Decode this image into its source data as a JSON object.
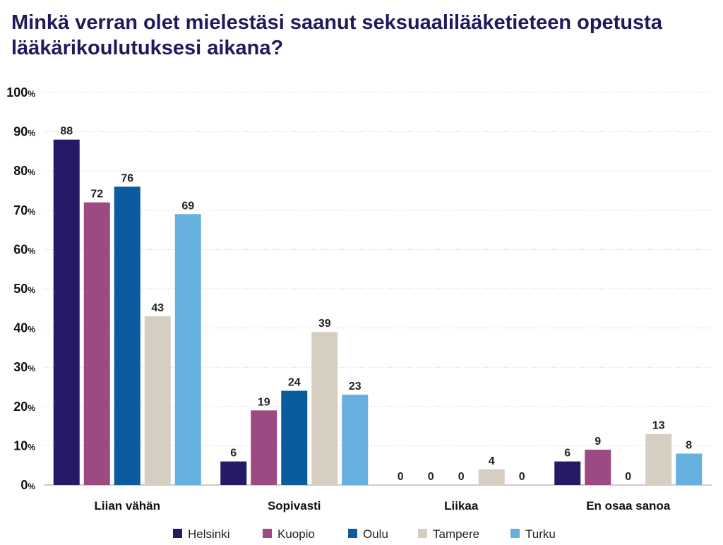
{
  "chart_data": {
    "type": "bar",
    "title": "Minkä verran olet mielestäsi saanut seksuaalilääketieteen opetusta lääkärikoulutuksesi aikana?",
    "categories": [
      "Liian vähän",
      "Sopivasti",
      "Liikaa",
      "En osaa sanoa"
    ],
    "series": [
      {
        "name": "Helsinki",
        "color": "#241a66",
        "values": [
          88,
          6,
          0,
          6
        ]
      },
      {
        "name": "Kuopio",
        "color": "#9b4a82",
        "values": [
          72,
          19,
          0,
          9
        ]
      },
      {
        "name": "Oulu",
        "color": "#0a5c9e",
        "values": [
          76,
          24,
          0,
          0
        ]
      },
      {
        "name": "Tampere",
        "color": "#d6cfc1",
        "values": [
          43,
          39,
          4,
          13
        ]
      },
      {
        "name": "Turku",
        "color": "#66b0e0",
        "values": [
          69,
          23,
          0,
          8
        ]
      }
    ],
    "yticks": [
      0,
      10,
      20,
      30,
      40,
      50,
      60,
      70,
      80,
      90,
      100
    ],
    "ytick_suffix": "%",
    "ylim": [
      0,
      100
    ],
    "grid": true,
    "legend_position": "bottom"
  }
}
